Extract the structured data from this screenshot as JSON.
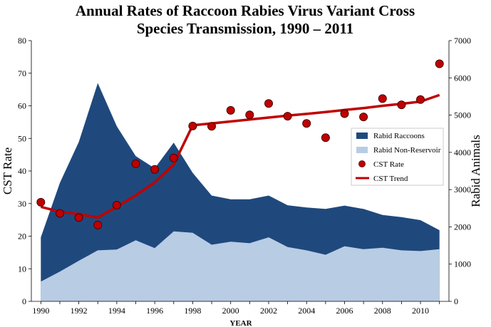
{
  "chart_data": {
    "type": "area",
    "title_line1": "Annual Rates of Raccoon Rabies Virus Variant Cross",
    "title_line2": "Species Transmission, 1990 – 2011",
    "xlabel": "YEAR",
    "ylabel_left": "CST Rate",
    "ylabel_right": "Rabid Animals",
    "x": [
      1990,
      1991,
      1992,
      1993,
      1994,
      1995,
      1996,
      1997,
      1998,
      1999,
      2000,
      2001,
      2002,
      2003,
      2004,
      2005,
      2006,
      2007,
      2008,
      2009,
      2010,
      2011
    ],
    "xticks": [
      "1990",
      "1992",
      "1994",
      "1996",
      "1998",
      "2000",
      "2002",
      "2004",
      "2006",
      "2008",
      "2010"
    ],
    "xtick_values": [
      1990,
      1992,
      1994,
      1996,
      1998,
      2000,
      2002,
      2004,
      2006,
      2008,
      2010
    ],
    "xlim": [
      1989.5,
      2011.5
    ],
    "ylim_left": [
      0,
      80
    ],
    "yticks_left": [
      "0",
      "10",
      "20",
      "30",
      "40",
      "50",
      "60",
      "70",
      "80"
    ],
    "ylim_right": [
      0,
      7000
    ],
    "yticks_right": [
      "0",
      "1000",
      "2000",
      "3000",
      "4000",
      "5000",
      "6000",
      "7000"
    ],
    "legend_position": "right",
    "series": [
      {
        "name": "Rabid Raccoons",
        "kind": "area",
        "axis": "right",
        "color": "#1f497d",
        "values": [
          1720,
          3180,
          4280,
          5860,
          4700,
          3900,
          3570,
          4260,
          3450,
          2840,
          2740,
          2740,
          2840,
          2580,
          2520,
          2480,
          2570,
          2480,
          2320,
          2260,
          2180,
          1910
        ]
      },
      {
        "name": "Rabid Non-Reservoir",
        "kind": "area",
        "axis": "right",
        "color": "#b8cce4",
        "values": [
          530,
          800,
          1090,
          1370,
          1390,
          1640,
          1430,
          1880,
          1840,
          1520,
          1600,
          1560,
          1720,
          1460,
          1370,
          1250,
          1480,
          1400,
          1440,
          1370,
          1350,
          1400
        ]
      },
      {
        "name": "CST Rate",
        "kind": "scatter",
        "axis": "left",
        "color": "#c00000",
        "values": [
          30.4,
          27.0,
          25.7,
          23.4,
          29.5,
          42.2,
          40.5,
          44.0,
          53.8,
          53.7,
          58.6,
          57.2,
          60.7,
          56.8,
          54.6,
          50.2,
          57.6,
          56.6,
          62.2,
          60.3,
          61.9,
          72.9
        ]
      },
      {
        "name": "CST Trend",
        "kind": "line",
        "axis": "left",
        "color": "#c00000",
        "values": [
          29.0,
          27.5,
          26.8,
          25.7,
          29.0,
          32.5,
          36.5,
          42.0,
          54.0,
          54.6,
          55.2,
          55.8,
          56.4,
          57.0,
          57.5,
          58.1,
          58.7,
          59.3,
          60.0,
          60.6,
          61.3,
          63.3
        ]
      }
    ]
  }
}
